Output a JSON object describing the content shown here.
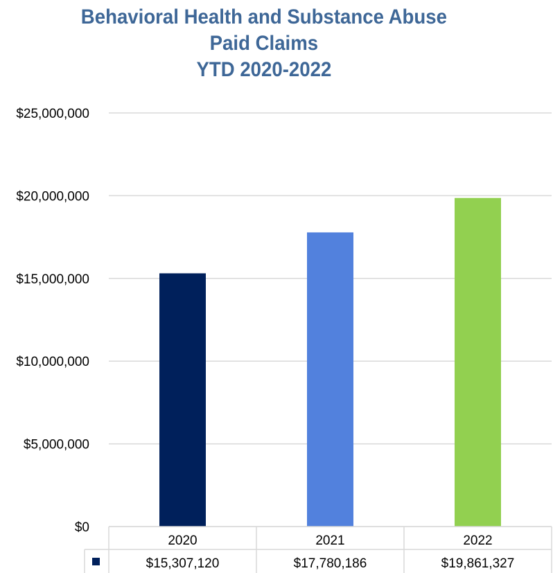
{
  "chart_data": {
    "type": "bar",
    "title_lines": [
      "Behavioral Health and Substance Abuse",
      "Paid Claims",
      "YTD 2020-2022"
    ],
    "categories": [
      "2020",
      "2021",
      "2022"
    ],
    "values": [
      15307120,
      17780186,
      19861327
    ],
    "value_labels": [
      "$15,307,120",
      "$17,780,186",
      "$19,861,327"
    ],
    "bar_colors": [
      "#00205B",
      "#5281DD",
      "#92D050"
    ],
    "ylim": [
      0,
      25000000
    ],
    "yticks": [
      0,
      5000000,
      10000000,
      15000000,
      20000000,
      25000000
    ],
    "ytick_labels": [
      "$0",
      "$5,000,000",
      "$10,000,000",
      "$15,000,000",
      "$20,000,000",
      "$25,000,000"
    ],
    "grid": true,
    "legend": "data-table",
    "legend_key_color": "#00205B",
    "title_color": "#3E6797"
  }
}
